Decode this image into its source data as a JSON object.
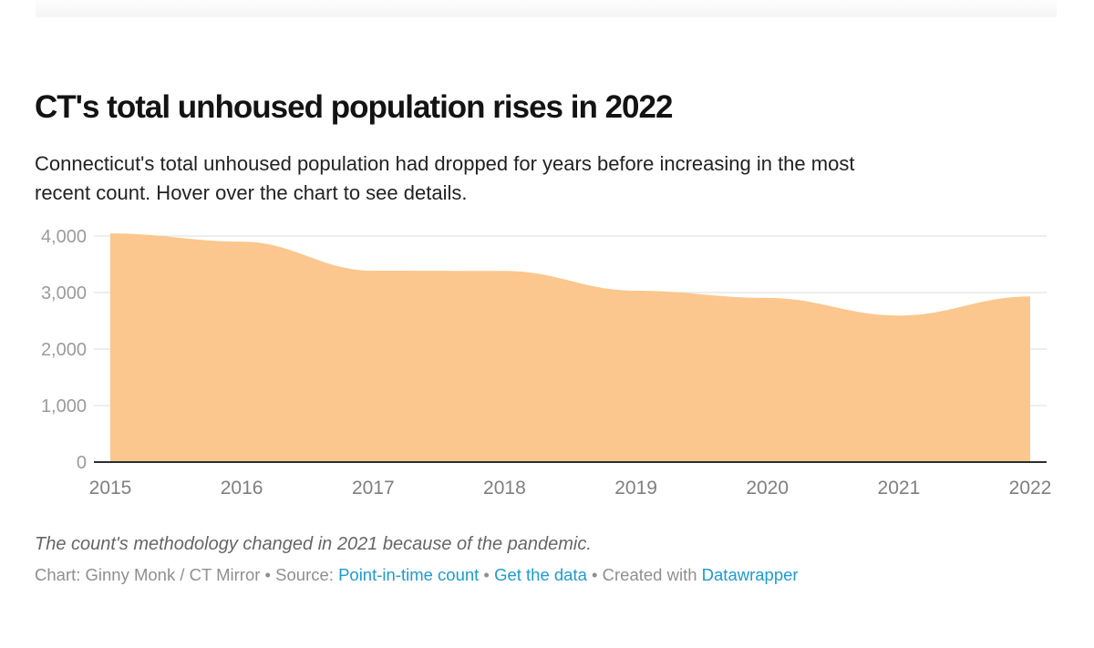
{
  "header": {
    "title": "CT's total unhoused population rises in 2022",
    "description_line1": "Connecticut's total unhoused population had dropped for years before increasing in the most",
    "description_line2": "recent count. Hover over the chart to see details."
  },
  "footer": {
    "footnote": "The count's methodology changed in 2021 because of the pandemic.",
    "byline": {
      "prefix": "Chart: Ginny Monk / CT Mirror • Source: ",
      "source_link": "Point-in-time count",
      "sep1": " • ",
      "data_link": "Get the data",
      "sep2": " • ",
      "created_with": "Created with ",
      "tool_link": "Datawrapper"
    }
  },
  "colors": {
    "area_fill": "#FBC78E",
    "gridline": "#DCDCDC",
    "baseline": "#2D2D2D",
    "y_tick_label": "#9B9B9B",
    "x_tick_label": "#7F7F7F",
    "link_blue": "#1E9BD3",
    "title_text": "#131313",
    "description_text": "#222222",
    "footnote_text": "#666666",
    "byline_text": "#8F8F8F"
  },
  "chart_data": {
    "type": "area",
    "title": "CT's total unhoused population rises in 2022",
    "x": [
      2015,
      2016,
      2017,
      2018,
      2019,
      2020,
      2021,
      2022
    ],
    "series": [
      {
        "name": "Total unhoused population",
        "values": [
          4047,
          3902,
          3387,
          3383,
          3033,
          2905,
          2594,
          2930
        ]
      }
    ],
    "xlabel": "",
    "ylabel": "",
    "ylim": [
      0,
      4000
    ],
    "y_ticks": [
      0,
      1000,
      2000,
      3000,
      4000
    ],
    "y_tick_labels": [
      "0",
      "1,000",
      "2,000",
      "3,000",
      "4,000"
    ],
    "grid": true,
    "legend_position": "none",
    "fill_color": "#FBC78E",
    "smoothing": true
  }
}
